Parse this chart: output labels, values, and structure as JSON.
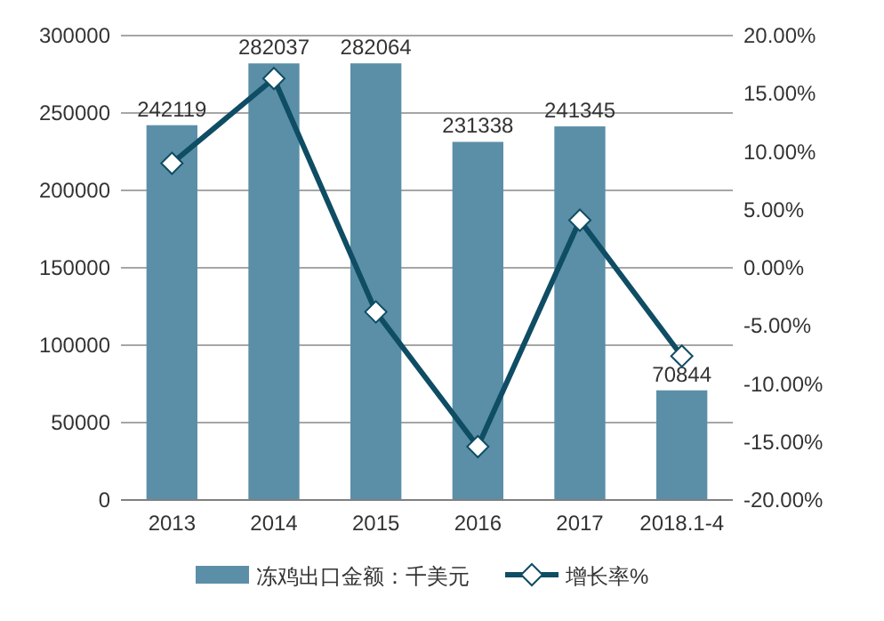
{
  "chart_data": {
    "type": "bar",
    "categories": [
      "2013",
      "2014",
      "2015",
      "2016",
      "2017",
      "2018.1-4"
    ],
    "series": [
      {
        "name": "冻鸡出口金额：千美元",
        "color": "#5b8fa8",
        "values": [
          242119,
          282037,
          282064,
          231338,
          241345,
          70844
        ],
        "data_labels": true
      },
      {
        "name": "增长率%",
        "type": "line",
        "axis": "y2",
        "color": "#0e4d64",
        "marker": "diamond",
        "values": [
          9.0,
          16.3,
          -3.8,
          -15.4,
          4.1,
          -7.6
        ]
      }
    ],
    "ylim": [
      0,
      300000
    ],
    "yticks": [
      0,
      50000,
      100000,
      150000,
      200000,
      250000,
      300000
    ],
    "y2lim": [
      -20,
      20
    ],
    "y2ticks": [
      {
        "value": -20,
        "label": "-20.00%"
      },
      {
        "value": -15,
        "label": "-15.00%"
      },
      {
        "value": -10,
        "label": "-10.00%"
      },
      {
        "value": -5,
        "label": "-5.00%"
      },
      {
        "value": 0,
        "label": "0.00%"
      },
      {
        "value": 5,
        "label": "5.00%"
      },
      {
        "value": 10,
        "label": "10.00%"
      },
      {
        "value": 15,
        "label": "15.00%"
      },
      {
        "value": 20,
        "label": "20.00%"
      }
    ],
    "grid": "y",
    "legend": "bottom",
    "line_style": "solid"
  }
}
